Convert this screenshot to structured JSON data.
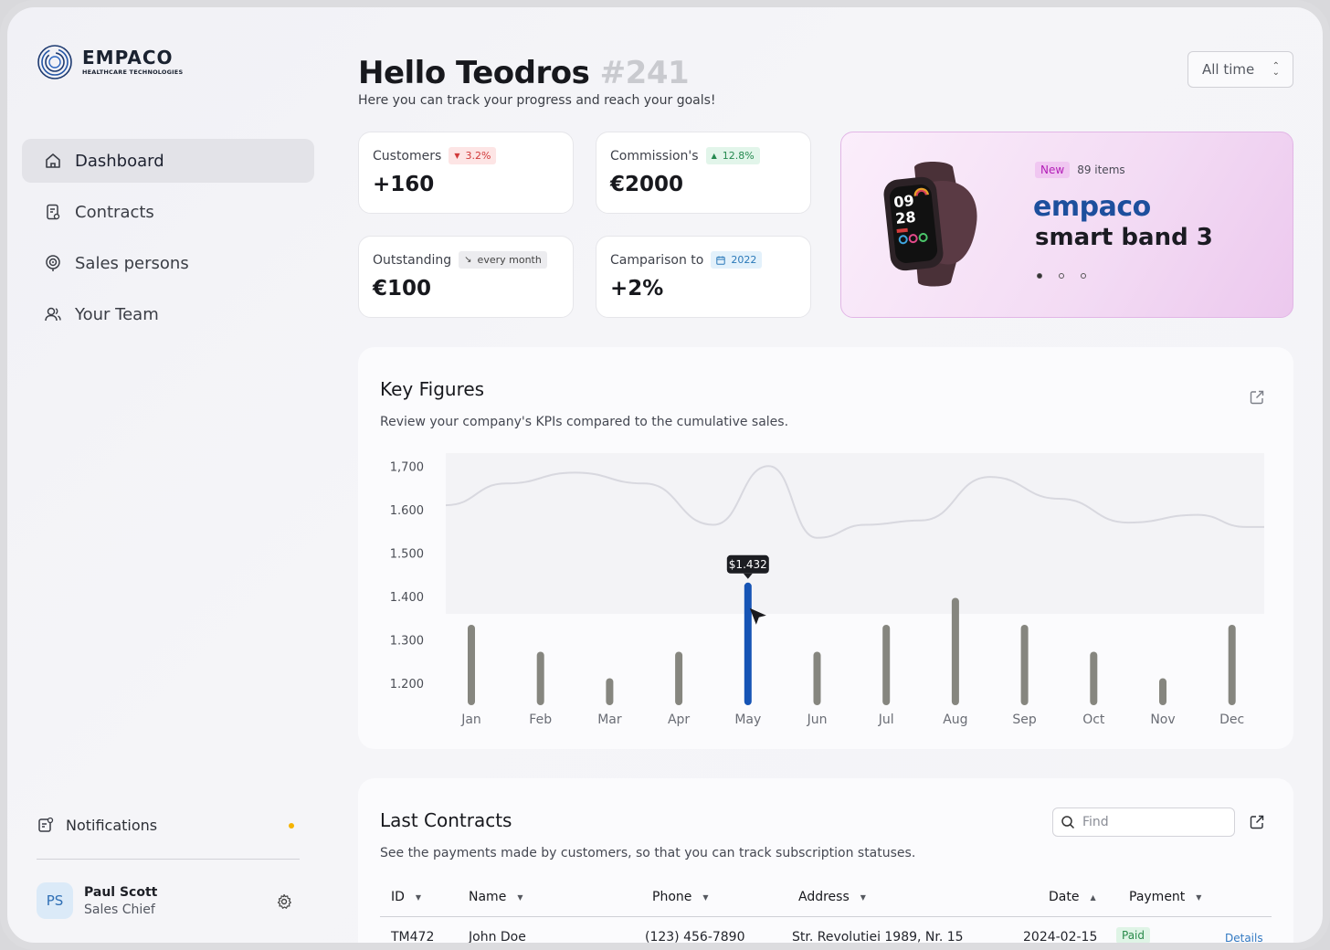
{
  "brand": {
    "name": "EMPACO",
    "tagline": "HEALTHCARE TECHNOLOGIES"
  },
  "sidebar": {
    "items": [
      {
        "label": "Dashboard",
        "icon": "home-icon",
        "active": true
      },
      {
        "label": "Contracts",
        "icon": "contract-icon"
      },
      {
        "label": "Sales persons",
        "icon": "target-icon"
      },
      {
        "label": "Your Team",
        "icon": "team-icon"
      }
    ],
    "notifications": {
      "label": "Notifications",
      "icon": "notifications-icon",
      "dot_color": "#f5b300"
    }
  },
  "user": {
    "initials": "PS",
    "name": "Paul Scott",
    "role": "Sales Chief"
  },
  "header": {
    "greeting": "Hello Teodros",
    "number": "#241",
    "subtitle": "Here you can track your progress and reach your goals!",
    "period": "All time"
  },
  "stats": [
    {
      "label": "Customers",
      "badge": "3.2%",
      "badge_icon": "▼",
      "badge_color": "red",
      "value": "+160"
    },
    {
      "label": "Commission's",
      "badge": "12.8%",
      "badge_icon": "▲",
      "badge_color": "green",
      "value": "€2000"
    },
    {
      "label": "Outstanding",
      "badge": "every month",
      "badge_icon": "↘",
      "badge_color": "gray",
      "value": "€100"
    },
    {
      "label": "Camparison to",
      "badge": "2022",
      "badge_icon": "calendar-icon",
      "badge_color": "blue",
      "value": "+2%"
    }
  ],
  "promo": {
    "tag": "New",
    "count": "89 items",
    "brand": "empaco",
    "product": "smart band 3",
    "watch_time_h": "09",
    "watch_time_m": "28"
  },
  "key_figures": {
    "title": "Key Figures",
    "subtitle": "Review your company's KPIs compared to the cumulative sales.",
    "tooltip": "$1.432"
  },
  "chart_data": {
    "type": "bar",
    "categories": [
      "Jan",
      "Feb",
      "Mar",
      "Apr",
      "May",
      "Jun",
      "Jul",
      "Aug",
      "Sep",
      "Oct",
      "Nov",
      "Dec"
    ],
    "values": [
      1335,
      1273,
      1212,
      1273,
      1432,
      1273,
      1335,
      1397,
      1335,
      1273,
      1212,
      1335
    ],
    "highlight_index": 4,
    "highlight_color": "#1654b5",
    "bar_color": "#86867f",
    "ytick_labels": [
      "1,700",
      "1.600",
      "1.500",
      "1.400",
      "1.300",
      "1.200"
    ],
    "yticks": [
      1700,
      1600,
      1500,
      1400,
      1300,
      1200
    ],
    "ylim": [
      1150,
      1730
    ],
    "background_line": {
      "x": [
        0,
        0.5,
        1.5,
        2.5,
        3.5,
        4.3,
        5.0,
        5.7,
        6.5,
        7.5,
        8.5,
        9.5,
        10.5,
        11.2
      ],
      "values": [
        1610,
        1660,
        1685,
        1660,
        1565,
        1700,
        1535,
        1565,
        1575,
        1675,
        1625,
        1570,
        1588,
        1560
      ]
    }
  },
  "contracts": {
    "title": "Last Contracts",
    "subtitle": "See the payments made by customers, so that you can track subscription statuses.",
    "search_placeholder": "Find",
    "columns": [
      "ID",
      "Name",
      "Phone",
      "Address",
      "Date",
      "Payment"
    ],
    "rows": [
      {
        "id": "TM472",
        "name": "John Doe",
        "phone": "(123) 456-7890",
        "address": "Str. Revolutiei 1989, Nr. 15",
        "date": "2024-02-15",
        "payment": "Paid",
        "action": "Details"
      }
    ]
  }
}
